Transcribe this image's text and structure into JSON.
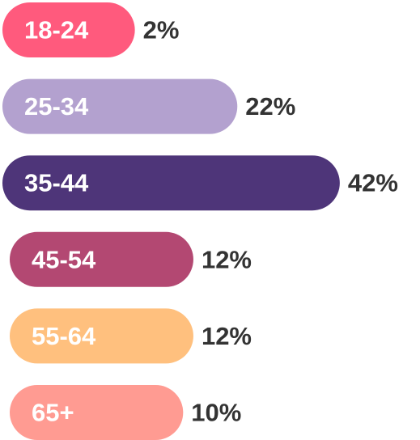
{
  "chart_data": {
    "type": "bar",
    "orientation": "horizontal",
    "categories": [
      "18-24",
      "25-34",
      "35-44",
      "45-54",
      "55-64",
      "65+"
    ],
    "values": [
      2,
      22,
      42,
      12,
      12,
      10
    ],
    "value_labels": [
      "2%",
      "22%",
      "42%",
      "12%",
      "12%",
      "10%"
    ],
    "colors": [
      "#ff5a7d",
      "#b3a1cf",
      "#4e3579",
      "#b34872",
      "#ffc07e",
      "#ff9b92"
    ]
  }
}
